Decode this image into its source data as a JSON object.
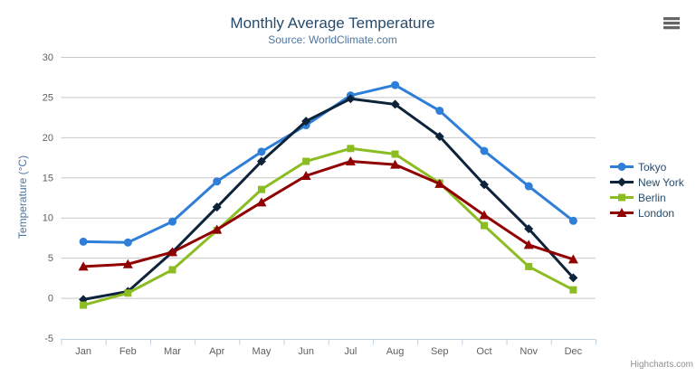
{
  "chart": {
    "credits": "Highcharts.com"
  },
  "icons": {
    "export_menu": "hamburger"
  },
  "colors": {
    "title": "#274b6d",
    "subtitle": "#4d759e",
    "axis_title": "#4d759e",
    "axis_labels": "#606060",
    "gridline": "#c8c8c8",
    "axis_line": "#c0d0e0",
    "legend_text": "#274b6d",
    "credits": "#909090",
    "export_icon": "#666666"
  },
  "chart_data": {
    "type": "line",
    "title": "Monthly Average Temperature",
    "subtitle": "Source: WorldClimate.com",
    "xlabel": "",
    "ylabel": "Temperature (°C)",
    "categories": [
      "Jan",
      "Feb",
      "Mar",
      "Apr",
      "May",
      "Jun",
      "Jul",
      "Aug",
      "Sep",
      "Oct",
      "Nov",
      "Dec"
    ],
    "ylim": [
      -5,
      30
    ],
    "y_tick_interval": 5,
    "grid": true,
    "legend_position": "right",
    "series": [
      {
        "name": "Tokyo",
        "color": "#2f7ed8",
        "marker": "circle",
        "values": [
          7.0,
          6.9,
          9.5,
          14.5,
          18.2,
          21.5,
          25.2,
          26.5,
          23.3,
          18.3,
          13.9,
          9.6
        ]
      },
      {
        "name": "New York",
        "color": "#0d233a",
        "marker": "diamond",
        "values": [
          -0.2,
          0.8,
          5.7,
          11.3,
          17.0,
          22.0,
          24.8,
          24.1,
          20.1,
          14.1,
          8.6,
          2.5
        ]
      },
      {
        "name": "Berlin",
        "color": "#8bbc21",
        "marker": "square",
        "values": [
          -0.9,
          0.6,
          3.5,
          8.4,
          13.5,
          17.0,
          18.6,
          17.9,
          14.3,
          9.0,
          3.9,
          1.0
        ]
      },
      {
        "name": "London",
        "color": "#910000",
        "marker": "triangle",
        "values": [
          3.9,
          4.2,
          5.7,
          8.5,
          11.9,
          15.2,
          17.0,
          16.6,
          14.2,
          10.3,
          6.6,
          4.8
        ]
      }
    ]
  }
}
